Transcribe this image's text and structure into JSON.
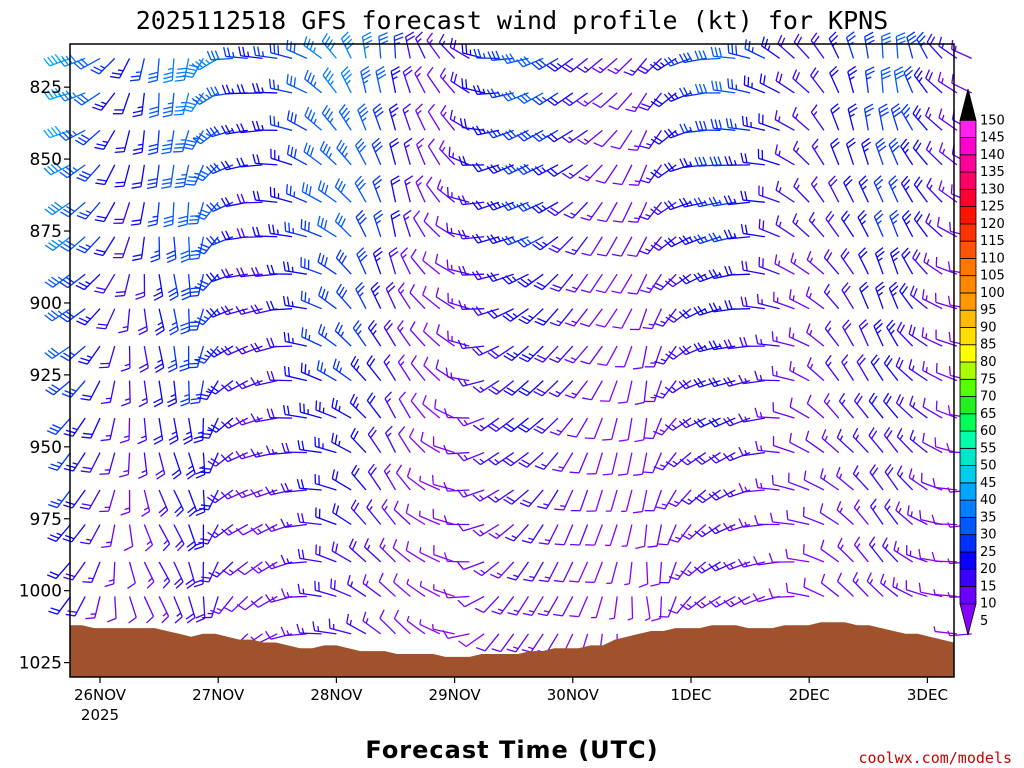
{
  "chart_data": {
    "type": "wind_profile",
    "title": "2025112518 GFS forecast wind profile (kt) for KPNS",
    "xlabel": "Forecast Time (UTC)",
    "ylabel": "",
    "y_ticks": [
      825,
      850,
      875,
      900,
      925,
      950,
      975,
      1000,
      1025
    ],
    "ylim": [
      810,
      1030
    ],
    "x_ticks": [
      "26NOV",
      "27NOV",
      "28NOV",
      "29NOV",
      "30NOV",
      "1DEC",
      "2DEC",
      "3DEC"
    ],
    "x_year": "2025",
    "colorbar": {
      "values": [
        5,
        10,
        15,
        20,
        25,
        30,
        35,
        40,
        45,
        50,
        55,
        60,
        65,
        70,
        75,
        80,
        85,
        90,
        95,
        100,
        105,
        110,
        115,
        120,
        125,
        130,
        135,
        140,
        145,
        150
      ],
      "colors": [
        "#8800ff",
        "#6a00ff",
        "#3c00ff",
        "#0a00ff",
        "#0032ff",
        "#0059ff",
        "#0080ff",
        "#00a6ff",
        "#00ccee",
        "#00e6c8",
        "#00ffaa",
        "#00ff55",
        "#22ee22",
        "#55ff00",
        "#aaff00",
        "#ffff00",
        "#ffdd00",
        "#ffbb00",
        "#ff9900",
        "#ff8800",
        "#ff7700",
        "#ff5500",
        "#ff3300",
        "#ff1100",
        "#ff0033",
        "#ff0066",
        "#ff0099",
        "#ff00cc",
        "#ff22ee",
        "#000000"
      ]
    },
    "surface_pressure": [
      1012,
      1012,
      1013,
      1013,
      1013,
      1013,
      1013,
      1013,
      1014,
      1015,
      1016,
      1015,
      1015,
      1016,
      1017,
      1017,
      1018,
      1018,
      1019,
      1020,
      1020,
      1019,
      1019,
      1020,
      1021,
      1021,
      1021,
      1022,
      1022,
      1022,
      1022,
      1023,
      1023,
      1023,
      1022,
      1022,
      1022,
      1022,
      1021,
      1021,
      1020,
      1020,
      1020,
      1019,
      1019,
      1017,
      1016,
      1015,
      1014,
      1014,
      1013,
      1013,
      1013,
      1012,
      1012,
      1012,
      1013,
      1013,
      1013,
      1012,
      1012,
      1012,
      1011,
      1011,
      1011,
      1012,
      1012,
      1013,
      1014,
      1015,
      1015,
      1016,
      1017,
      1018
    ],
    "barb_times": [
      0,
      3,
      6,
      9,
      12,
      15,
      18,
      21,
      24,
      27,
      30,
      33,
      36,
      39,
      42,
      45,
      48,
      51,
      54,
      57,
      60,
      63,
      66,
      69,
      72,
      75,
      78,
      81,
      84,
      87,
      90,
      93,
      96,
      99,
      102,
      105,
      108,
      111,
      114,
      117,
      120,
      123,
      126,
      129,
      132,
      135,
      138,
      141,
      144,
      147,
      150,
      153,
      156,
      159,
      162,
      165,
      168,
      171,
      174,
      177,
      180,
      183
    ],
    "barb_levels": [
      815,
      827,
      840,
      852,
      865,
      877,
      890,
      902,
      915,
      927,
      940,
      952,
      965,
      977,
      990,
      1002,
      1015
    ],
    "wind_dir_profile": [
      250,
      245,
      235,
      220,
      205,
      195,
      190,
      190,
      195,
      210,
      235,
      260,
      270,
      275,
      280,
      290,
      300,
      310,
      320,
      330,
      345,
      350,
      355,
      350,
      340,
      330,
      320,
      300,
      280,
      265,
      260,
      255,
      250,
      245,
      240,
      235,
      230,
      225,
      220,
      215,
      225,
      240,
      255,
      265,
      270,
      275,
      280,
      290,
      300,
      310,
      320,
      330,
      340,
      345,
      350,
      352,
      350,
      340,
      330,
      320,
      310,
      300
    ],
    "wind_speed_profile": [
      35,
      30,
      25,
      20,
      18,
      20,
      25,
      28,
      30,
      30,
      28,
      25,
      20,
      18,
      20,
      22,
      25,
      28,
      30,
      30,
      28,
      25,
      20,
      15,
      12,
      10,
      12,
      15,
      18,
      20,
      22,
      25,
      25,
      22,
      18,
      15,
      12,
      10,
      10,
      12,
      15,
      18,
      20,
      22,
      25,
      25,
      22,
      20,
      18,
      15,
      15,
      15,
      18,
      20,
      22,
      25,
      25,
      22,
      20,
      15,
      12,
      10
    ]
  },
  "credit": "coolwx.com/models"
}
